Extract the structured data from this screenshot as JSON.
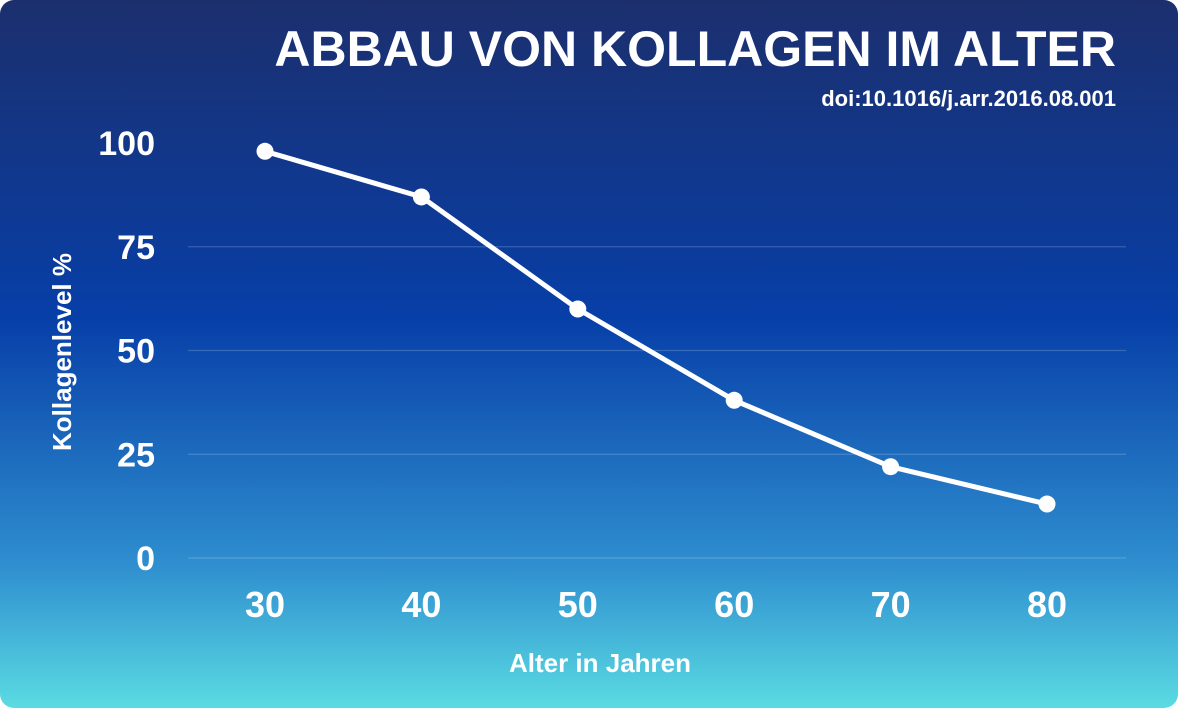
{
  "chart_data": {
    "type": "line",
    "title": "ABBAU VON KOLLAGEN IM ALTER",
    "subtitle": "doi:10.1016/j.arr.2016.08.001",
    "xlabel": "Alter in Jahren",
    "ylabel": "Kollagenlevel %",
    "x": [
      30,
      40,
      50,
      60,
      70,
      80
    ],
    "x_tick_labels": [
      "30",
      "40",
      "50",
      "60",
      "70",
      "80"
    ],
    "y_ticks": [
      0,
      25,
      50,
      75,
      100
    ],
    "y_tick_labels": [
      "0",
      "25",
      "50",
      "75",
      "100"
    ],
    "ylim": [
      0,
      100
    ],
    "grid": true,
    "series": [
      {
        "values": [
          98,
          87,
          60,
          38,
          22,
          13
        ],
        "color": "#ffffff"
      }
    ]
  },
  "colors": {
    "background_top": "#1c2f6d",
    "background_mid": "#073fa8",
    "background_bottom": "#5adbe2",
    "foreground": "#ffffff"
  }
}
